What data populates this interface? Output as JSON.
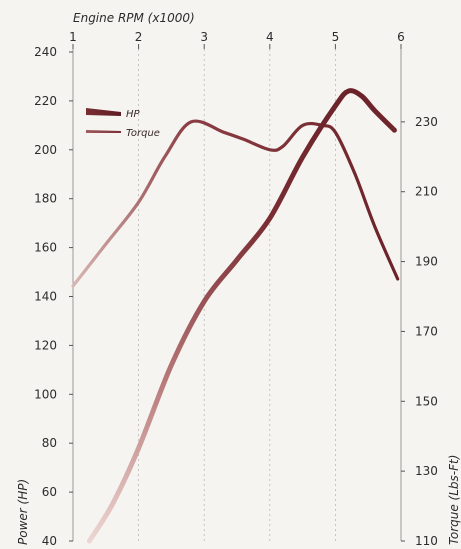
{
  "chart_data": {
    "type": "line",
    "x_axis": {
      "label": "Engine RPM (x1000)",
      "position": "top",
      "ticks": [
        1,
        2,
        3,
        4,
        5,
        6
      ],
      "range": [
        1,
        6
      ]
    },
    "y_left": {
      "label": "Power (HP)",
      "ticks": [
        40,
        60,
        80,
        100,
        120,
        140,
        160,
        180,
        200,
        220,
        240
      ],
      "range": [
        40,
        240
      ]
    },
    "y_right": {
      "label": "Torque (Lbs-Ft)",
      "ticks": [
        110,
        130,
        150,
        170,
        190,
        210,
        230
      ],
      "range": [
        110,
        250
      ]
    },
    "grid": "vertical dashed",
    "legend": "upper-left",
    "series": [
      {
        "name": "HP",
        "axis": "left",
        "color": "#7a2e34",
        "x": [
          1.25,
          1.6,
          2.0,
          2.5,
          3.0,
          3.5,
          4.0,
          4.5,
          5.0,
          5.2,
          5.4,
          5.6,
          5.9
        ],
        "y": [
          40,
          55,
          78,
          112,
          138,
          155,
          172,
          197,
          218,
          224,
          222,
          216,
          208
        ]
      },
      {
        "name": "Torque",
        "axis": "right",
        "color": "#7a2e34",
        "x": [
          1.0,
          1.5,
          2.0,
          2.4,
          2.8,
          3.3,
          3.6,
          4.0,
          4.2,
          4.5,
          4.8,
          5.0,
          5.3,
          5.6,
          5.95
        ],
        "y": [
          183,
          195,
          207,
          220,
          230,
          227,
          225,
          222,
          223,
          229,
          229,
          227,
          215,
          200,
          185
        ]
      }
    ]
  }
}
